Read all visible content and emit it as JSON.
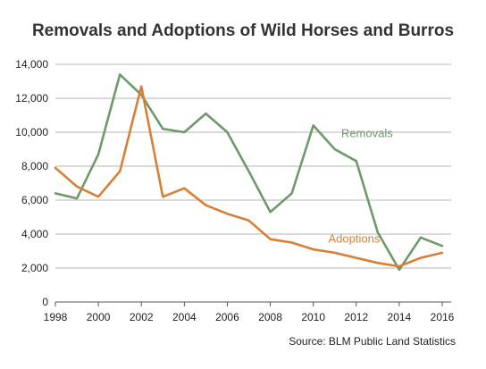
{
  "chart_data": {
    "type": "line",
    "title": "Removals and Adoptions of Wild Horses and Burros",
    "source": "Source: BLM Public Land Statistics",
    "xlabel": "",
    "ylabel": "",
    "x": [
      1998,
      1999,
      2000,
      2001,
      2002,
      2003,
      2004,
      2005,
      2006,
      2007,
      2008,
      2009,
      2010,
      2011,
      2012,
      2013,
      2014,
      2015,
      2016
    ],
    "xlim": [
      1998,
      2016
    ],
    "ylim": [
      0,
      14000
    ],
    "x_ticks": [
      1998,
      2000,
      2002,
      2004,
      2006,
      2008,
      2010,
      2012,
      2014,
      2016
    ],
    "x_tick_labels": [
      "1998",
      "2000",
      "2002",
      "2004",
      "2006",
      "2008",
      "2010",
      "2012",
      "2014",
      "2016"
    ],
    "y_ticks": [
      0,
      2000,
      4000,
      6000,
      8000,
      10000,
      12000,
      14000
    ],
    "y_tick_labels": [
      "0",
      "2,000",
      "4,000",
      "6,000",
      "8,000",
      "10,000",
      "12,000",
      "14,000"
    ],
    "grid": "horizontal",
    "series": [
      {
        "name": "Removals",
        "color": "#6e9a6a",
        "values": [
          6400,
          6100,
          8700,
          13400,
          12200,
          10200,
          10000,
          11100,
          10000,
          7700,
          5300,
          6400,
          10400,
          9000,
          8300,
          4100,
          1900,
          3800,
          3300
        ]
      },
      {
        "name": "Adoptions",
        "color": "#d97f35",
        "values": [
          7900,
          6800,
          6200,
          7700,
          12700,
          6200,
          6700,
          5700,
          5200,
          4800,
          3700,
          3500,
          3100,
          2900,
          2600,
          2300,
          2100,
          2600,
          2900
        ]
      }
    ]
  }
}
